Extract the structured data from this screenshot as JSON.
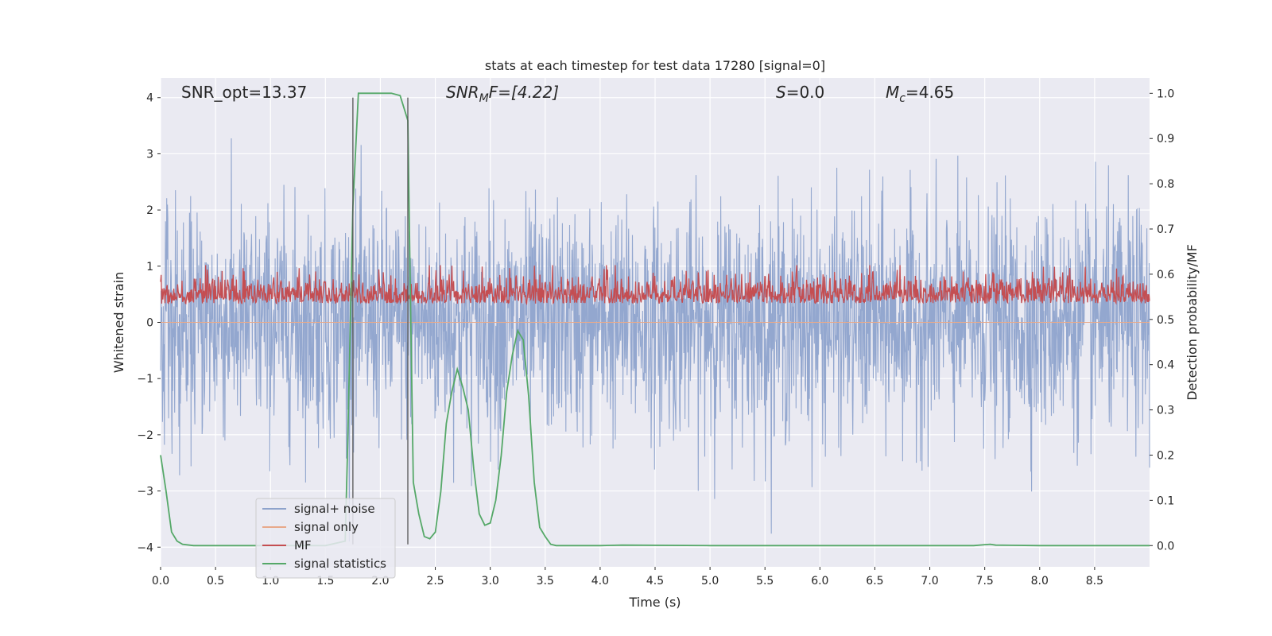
{
  "chart_data": {
    "type": "line",
    "title": "stats at each timestep for test data 17280 [signal=0]",
    "xlabel": "Time (s)",
    "ylabel_left": "Whitened strain",
    "ylabel_right": "Detection probability/MF",
    "xlim": [
      0.0,
      9.0
    ],
    "ylim_left": [
      -4.35,
      4.35
    ],
    "ylim_right": [
      -0.047,
      1.034
    ],
    "x_ticks": [
      "0.0",
      "0.5",
      "1.0",
      "1.5",
      "2.0",
      "2.5",
      "3.0",
      "3.5",
      "4.0",
      "4.5",
      "5.0",
      "5.5",
      "6.0",
      "6.5",
      "7.0",
      "7.5",
      "8.0",
      "8.5"
    ],
    "y_ticks_left": [
      "4",
      "3",
      "2",
      "1",
      "0",
      "−1",
      "−2",
      "−3",
      "−4"
    ],
    "y_ticks_right": [
      "1.0",
      "0.9",
      "0.8",
      "0.7",
      "0.6",
      "0.5",
      "0.4",
      "0.3",
      "0.2",
      "0.1",
      "0.0"
    ],
    "grid": true,
    "annotations": {
      "snr_opt": "SNR_opt=13.37",
      "snr_mf_sym": "SNR",
      "snr_mf_sub": "M",
      "snr_mf_tail": "F=[4.22]",
      "s_sym": "S",
      "s_val": "=0.0",
      "mc_sym": "M",
      "mc_sub": "c",
      "mc_val": "=4.65"
    },
    "vlines": [
      1.75,
      2.25
    ],
    "vline_range": [
      -3.95,
      4.0
    ],
    "legend_position": "lower-left",
    "series": [
      {
        "name": "signal+ noise",
        "color": "#8ea3cc",
        "style": "noise",
        "approx_mean": 0,
        "approx_peak_range": [
          -3.9,
          4.0
        ]
      },
      {
        "name": "signal only",
        "color": "#e8a98a",
        "style": "flat",
        "values": [
          0
        ]
      },
      {
        "name": "MF",
        "color": "#c44e52",
        "style": "noise",
        "approx_range": [
          0.0,
          1.0
        ]
      },
      {
        "name": "signal statistics",
        "color": "#55a868",
        "axis": "right",
        "x": [
          0.0,
          0.05,
          0.1,
          0.15,
          0.2,
          0.3,
          0.5,
          1.0,
          1.5,
          1.68,
          1.7,
          1.75,
          1.8,
          1.85,
          2.0,
          2.1,
          2.18,
          2.25,
          2.27,
          2.3,
          2.35,
          2.4,
          2.45,
          2.5,
          2.55,
          2.6,
          2.65,
          2.7,
          2.75,
          2.8,
          2.85,
          2.9,
          2.95,
          3.0,
          3.05,
          3.1,
          3.15,
          3.2,
          3.25,
          3.3,
          3.35,
          3.4,
          3.45,
          3.5,
          3.55,
          3.6,
          3.7,
          4.0,
          4.2,
          5.0,
          6.0,
          7.0,
          7.4,
          7.5,
          7.55,
          7.6,
          8.0,
          9.0
        ],
        "values": [
          0.2,
          0.12,
          0.03,
          0.01,
          0.003,
          0.0,
          0.0,
          0.0,
          0.0,
          0.01,
          0.2,
          0.75,
          1.0,
          1.0,
          1.0,
          1.0,
          0.995,
          0.94,
          0.6,
          0.14,
          0.07,
          0.02,
          0.015,
          0.03,
          0.12,
          0.27,
          0.34,
          0.39,
          0.35,
          0.3,
          0.17,
          0.07,
          0.045,
          0.05,
          0.1,
          0.2,
          0.34,
          0.42,
          0.475,
          0.455,
          0.33,
          0.14,
          0.04,
          0.02,
          0.003,
          0.0,
          0.0,
          0.0,
          0.001,
          0.0,
          0.0,
          0.0,
          0.0,
          0.002,
          0.003,
          0.001,
          0.0,
          0.0
        ]
      }
    ]
  }
}
